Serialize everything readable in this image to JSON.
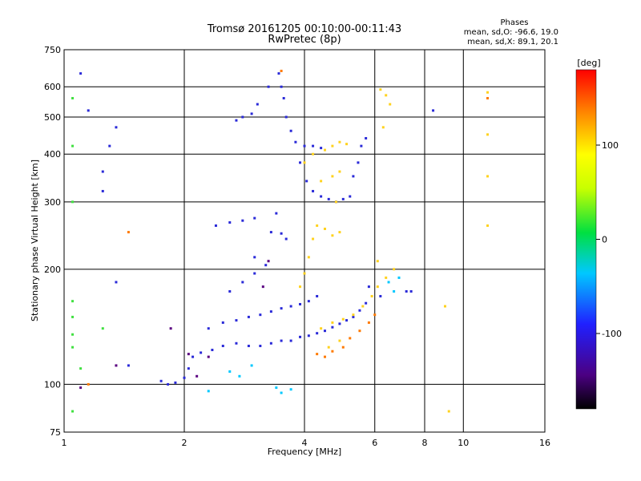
{
  "chart_data": {
    "type": "scatter",
    "title": "Tromsø 20161205 00:10:00-00:11:43",
    "subtitle": "RwPretec (8p)",
    "xlabel": "Frequency [MHz]",
    "ylabel": "Stationary phase Virtual Height [km]",
    "x_scale": "log2",
    "y_scale": "log",
    "xlim": [
      1,
      16
    ],
    "ylim": [
      75,
      750
    ],
    "x_ticks": [
      "1",
      "2",
      "4",
      "6",
      "8",
      "10",
      "16"
    ],
    "y_ticks": [
      "75",
      "100",
      "200",
      "300",
      "400",
      "500",
      "600",
      "750"
    ],
    "grid": true,
    "stats": {
      "heading": "Phases",
      "line_o": "mean, sd,O: -96.6, 19.0",
      "line_x": "mean, sd,X:  89.1, 20.1"
    },
    "colorbar": {
      "label": "[deg]",
      "ticks": [
        "100",
        "0",
        "-100"
      ],
      "range": [
        -180,
        180
      ],
      "colormap": "rainbow"
    },
    "series": [
      {
        "phase": "O",
        "color": "#2a2ad8",
        "points": [
          [
            1.75,
            102
          ],
          [
            1.82,
            100
          ],
          [
            1.9,
            101
          ],
          [
            2.0,
            104
          ],
          [
            2.05,
            110
          ],
          [
            2.1,
            118
          ],
          [
            2.2,
            121
          ],
          [
            2.35,
            123
          ],
          [
            2.5,
            126
          ],
          [
            2.7,
            128
          ],
          [
            2.9,
            126
          ],
          [
            3.1,
            126
          ],
          [
            3.3,
            128
          ],
          [
            3.5,
            130
          ],
          [
            3.7,
            130
          ],
          [
            3.9,
            133
          ],
          [
            4.1,
            134
          ],
          [
            4.3,
            136
          ],
          [
            4.5,
            138
          ],
          [
            4.7,
            141
          ],
          [
            4.9,
            144
          ],
          [
            5.1,
            147
          ],
          [
            5.3,
            150
          ],
          [
            5.5,
            156
          ],
          [
            5.7,
            163
          ],
          [
            2.3,
            140
          ],
          [
            2.5,
            145
          ],
          [
            2.7,
            147
          ],
          [
            2.9,
            150
          ],
          [
            3.1,
            152
          ],
          [
            3.3,
            155
          ],
          [
            3.5,
            158
          ],
          [
            3.7,
            160
          ],
          [
            3.9,
            162
          ],
          [
            4.1,
            165
          ],
          [
            4.3,
            170
          ],
          [
            2.6,
            175
          ],
          [
            2.8,
            185
          ],
          [
            3.0,
            195
          ],
          [
            3.2,
            205
          ],
          [
            3.0,
            215
          ],
          [
            3.3,
            250
          ],
          [
            3.4,
            280
          ],
          [
            3.5,
            248
          ],
          [
            3.6,
            240
          ],
          [
            3.55,
            560
          ],
          [
            3.5,
            600
          ],
          [
            3.45,
            650
          ],
          [
            3.6,
            500
          ],
          [
            3.7,
            460
          ],
          [
            3.8,
            430
          ],
          [
            4.0,
            420
          ],
          [
            4.2,
            420
          ],
          [
            4.4,
            415
          ],
          [
            3.9,
            380
          ],
          [
            4.05,
            340
          ],
          [
            4.2,
            320
          ],
          [
            4.4,
            310
          ],
          [
            4.6,
            305
          ],
          [
            4.8,
            300
          ],
          [
            5.0,
            305
          ],
          [
            5.2,
            310
          ],
          [
            5.3,
            350
          ],
          [
            5.45,
            380
          ],
          [
            5.55,
            420
          ],
          [
            5.7,
            440
          ],
          [
            2.4,
            260
          ],
          [
            2.6,
            265
          ],
          [
            2.8,
            268
          ],
          [
            3.0,
            272
          ],
          [
            2.7,
            490
          ],
          [
            2.8,
            500
          ],
          [
            2.95,
            510
          ],
          [
            3.05,
            540
          ],
          [
            3.25,
            600
          ],
          [
            1.1,
            650
          ],
          [
            1.15,
            520
          ],
          [
            1.3,
            420
          ],
          [
            1.35,
            470
          ],
          [
            1.25,
            320
          ],
          [
            1.25,
            360
          ],
          [
            1.35,
            185
          ],
          [
            1.45,
            112
          ],
          [
            7.2,
            175
          ],
          [
            7.4,
            175
          ],
          [
            8.4,
            520
          ],
          [
            5.8,
            180
          ],
          [
            6.2,
            170
          ]
        ]
      },
      {
        "phase": "X",
        "color": "#ffd21e",
        "points": [
          [
            3.9,
            180
          ],
          [
            4.0,
            195
          ],
          [
            4.1,
            215
          ],
          [
            4.2,
            240
          ],
          [
            4.3,
            260
          ],
          [
            4.5,
            255
          ],
          [
            4.7,
            245
          ],
          [
            4.9,
            250
          ],
          [
            4.0,
            380
          ],
          [
            4.2,
            400
          ],
          [
            4.5,
            410
          ],
          [
            4.7,
            420
          ],
          [
            4.9,
            430
          ],
          [
            5.1,
            425
          ],
          [
            4.4,
            340
          ],
          [
            4.7,
            350
          ],
          [
            4.9,
            360
          ],
          [
            4.8,
            300
          ],
          [
            4.4,
            140
          ],
          [
            4.7,
            145
          ],
          [
            5.0,
            148
          ],
          [
            5.3,
            152
          ],
          [
            5.6,
            160
          ],
          [
            5.9,
            170
          ],
          [
            6.1,
            180
          ],
          [
            6.4,
            190
          ],
          [
            6.7,
            200
          ],
          [
            6.1,
            210
          ],
          [
            6.2,
            590
          ],
          [
            6.4,
            570
          ],
          [
            6.55,
            540
          ],
          [
            6.3,
            470
          ],
          [
            11.5,
            580
          ],
          [
            11.5,
            450
          ],
          [
            11.5,
            350
          ],
          [
            11.5,
            260
          ],
          [
            9.0,
            160
          ],
          [
            9.2,
            85
          ],
          [
            4.6,
            125
          ],
          [
            4.9,
            130
          ]
        ]
      },
      {
        "phase": "other",
        "color": "#ff7a00",
        "points": [
          [
            4.3,
            120
          ],
          [
            4.5,
            118
          ],
          [
            4.7,
            122
          ],
          [
            5.0,
            125
          ],
          [
            5.2,
            132
          ],
          [
            5.5,
            138
          ],
          [
            5.8,
            145
          ],
          [
            6.0,
            152
          ],
          [
            11.5,
            560
          ],
          [
            3.5,
            660
          ],
          [
            1.45,
            250
          ],
          [
            1.15,
            100
          ]
        ]
      },
      {
        "phase": "low-phase",
        "color": "#00c8ff",
        "points": [
          [
            2.6,
            108
          ],
          [
            2.75,
            105
          ],
          [
            2.95,
            112
          ],
          [
            3.4,
            98
          ],
          [
            3.5,
            95
          ],
          [
            2.3,
            96
          ],
          [
            3.7,
            97
          ],
          [
            6.5,
            185
          ],
          [
            6.7,
            175
          ],
          [
            6.9,
            190
          ]
        ]
      },
      {
        "phase": "green",
        "color": "#40e040",
        "points": [
          [
            1.05,
            420
          ],
          [
            1.05,
            560
          ],
          [
            1.05,
            300
          ],
          [
            1.05,
            165
          ],
          [
            1.05,
            150
          ],
          [
            1.05,
            135
          ],
          [
            1.05,
            125
          ],
          [
            1.1,
            110
          ],
          [
            1.05,
            85
          ],
          [
            1.25,
            140
          ]
        ]
      },
      {
        "phase": "dark",
        "color": "#5a0080",
        "points": [
          [
            1.85,
            140
          ],
          [
            2.05,
            120
          ],
          [
            2.3,
            118
          ],
          [
            3.15,
            180
          ],
          [
            3.25,
            210
          ],
          [
            1.1,
            98
          ],
          [
            1.35,
            112
          ],
          [
            2.15,
            105
          ]
        ]
      }
    ]
  }
}
